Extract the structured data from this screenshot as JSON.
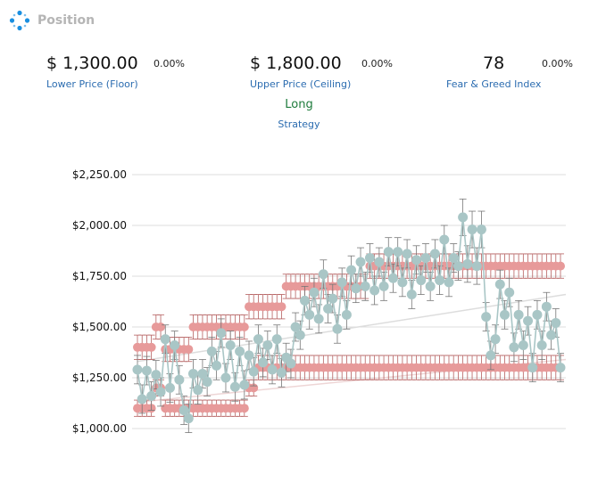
{
  "header": {
    "title": "Position",
    "icon": "dots-circle-icon",
    "icon_color": "#1a8fe0"
  },
  "stats": {
    "lower": {
      "value": "$ 1,300.00",
      "pct": "0.00%",
      "label": "Lower Price (Floor)"
    },
    "upper": {
      "value": "$  1,800.00",
      "pct": "0.00%",
      "label": "Upper Price (Ceiling)"
    },
    "fear": {
      "value": "78",
      "pct": "0.00%",
      "label": "Fear & Greed Index"
    }
  },
  "strategy": {
    "value": "Long",
    "label": "Strategy"
  },
  "colors": {
    "accent": "#2b6cb0",
    "long": "#1e7b3c",
    "price": "#a9c6c6",
    "bands": "#e79a9a",
    "band_error": "#b56060",
    "price_error": "#777777"
  },
  "chart_data": {
    "type": "scatter",
    "ylim": [
      1000,
      2250
    ],
    "yticks": [
      1000,
      1250,
      1500,
      1750,
      2000,
      2250
    ],
    "ytick_labels": [
      "$1,000.00",
      "$1,250.00",
      "$1,500.00",
      "$1,750.00",
      "$2,000.00",
      "$2,250.00"
    ],
    "grid": true,
    "series": [
      {
        "role": "price",
        "values": [
          1290,
          1145,
          1285,
          1160,
          1265,
          1180,
          1440,
          1200,
          1410,
          1240,
          1090,
          1050,
          1270,
          1190,
          1270,
          1230,
          1380,
          1310,
          1470,
          1250,
          1410,
          1205,
          1380,
          1215,
          1360,
          1280,
          1440,
          1325,
          1410,
          1290,
          1440,
          1275,
          1350,
          1320,
          1500,
          1460,
          1630,
          1560,
          1670,
          1540,
          1760,
          1590,
          1640,
          1490,
          1720,
          1560,
          1780,
          1690,
          1820,
          1700,
          1840,
          1680,
          1820,
          1700,
          1870,
          1740,
          1870,
          1720,
          1860,
          1660,
          1830,
          1730,
          1840,
          1700,
          1860,
          1730,
          1930,
          1720,
          1840,
          1800,
          2040,
          1810,
          1980,
          1800,
          1980,
          1550,
          1360,
          1440,
          1710,
          1560,
          1670,
          1400,
          1560,
          1410,
          1530,
          1300,
          1560,
          1410,
          1600,
          1460,
          1520,
          1300
        ],
        "errors": [
          70,
          70,
          70,
          70,
          70,
          70,
          70,
          70,
          70,
          70,
          70,
          70,
          70,
          70,
          70,
          70,
          70,
          70,
          70,
          70,
          70,
          70,
          70,
          70,
          70,
          70,
          70,
          70,
          70,
          70,
          70,
          70,
          70,
          70,
          70,
          70,
          70,
          70,
          70,
          70,
          70,
          70,
          70,
          70,
          70,
          70,
          70,
          70,
          70,
          70,
          70,
          70,
          70,
          70,
          70,
          70,
          70,
          70,
          70,
          70,
          70,
          70,
          70,
          70,
          70,
          70,
          70,
          70,
          70,
          70,
          90,
          90,
          90,
          90,
          90,
          70,
          70,
          70,
          70,
          70,
          70,
          70,
          70,
          70,
          70,
          70,
          70,
          70,
          70,
          70,
          70,
          70
        ]
      },
      {
        "role": "upper-band",
        "values": [
          1400,
          1400,
          1400,
          1400,
          1500,
          1500,
          1390,
          1390,
          1390,
          1390,
          1390,
          1390,
          1500,
          1500,
          1500,
          1500,
          1500,
          1500,
          1500,
          1500,
          1500,
          1500,
          1500,
          1500,
          1600,
          1600,
          1600,
          1600,
          1600,
          1600,
          1600,
          1600,
          1700,
          1700,
          1700,
          1700,
          1700,
          1700,
          1700,
          1700,
          1700,
          1700,
          1700,
          1700,
          1700,
          1700,
          1700,
          1700,
          1700,
          1700,
          1800,
          1800,
          1800,
          1800,
          1800,
          1800,
          1800,
          1800,
          1800,
          1800,
          1800,
          1800,
          1800,
          1800,
          1800,
          1800,
          1800,
          1800,
          1800,
          1800,
          1800,
          1800,
          1800,
          1800,
          1800,
          1800,
          1800,
          1800,
          1800,
          1800,
          1800,
          1800,
          1800,
          1800,
          1800,
          1800,
          1800,
          1800,
          1800,
          1800,
          1800,
          1800
        ],
        "errors": [
          60,
          60,
          60,
          60,
          60,
          60,
          60,
          60,
          60,
          60,
          60,
          60,
          60,
          60,
          60,
          60,
          60,
          60,
          60,
          60,
          60,
          60,
          60,
          60,
          60,
          60,
          60,
          60,
          60,
          60,
          60,
          60,
          60,
          60,
          60,
          60,
          60,
          60,
          60,
          60,
          60,
          60,
          60,
          60,
          60,
          60,
          60,
          60,
          60,
          60,
          60,
          60,
          60,
          60,
          60,
          60,
          60,
          60,
          60,
          60,
          60,
          60,
          60,
          60,
          60,
          60,
          60,
          60,
          60,
          60,
          60,
          60,
          60,
          60,
          60,
          60,
          60,
          60,
          60,
          60,
          60,
          60,
          60,
          60,
          60,
          60,
          60,
          60,
          60,
          60,
          60,
          60
        ]
      },
      {
        "role": "lower-band",
        "values": [
          1100,
          1100,
          1100,
          1100,
          1200,
          1200,
          1100,
          1100,
          1100,
          1100,
          1100,
          1100,
          1100,
          1100,
          1100,
          1100,
          1100,
          1100,
          1100,
          1100,
          1100,
          1100,
          1100,
          1100,
          1200,
          1200,
          1300,
          1300,
          1300,
          1300,
          1300,
          1300,
          1300,
          1300,
          1300,
          1300,
          1300,
          1300,
          1300,
          1300,
          1300,
          1300,
          1300,
          1300,
          1300,
          1300,
          1300,
          1300,
          1300,
          1300,
          1300,
          1300,
          1300,
          1300,
          1300,
          1300,
          1300,
          1300,
          1300,
          1300,
          1300,
          1300,
          1300,
          1300,
          1300,
          1300,
          1300,
          1300,
          1300,
          1300,
          1300,
          1300,
          1300,
          1300,
          1300,
          1300,
          1300,
          1300,
          1300,
          1300,
          1300,
          1300,
          1300,
          1300,
          1300,
          1300,
          1300,
          1300,
          1300,
          1300,
          1300,
          1300
        ],
        "errors": [
          40,
          40,
          40,
          40,
          40,
          40,
          40,
          40,
          40,
          40,
          40,
          40,
          40,
          40,
          40,
          40,
          40,
          40,
          40,
          40,
          40,
          40,
          40,
          40,
          40,
          40,
          60,
          60,
          60,
          60,
          60,
          60,
          60,
          60,
          60,
          60,
          60,
          60,
          60,
          60,
          60,
          60,
          60,
          60,
          60,
          60,
          60,
          60,
          60,
          60,
          60,
          60,
          60,
          60,
          60,
          60,
          60,
          60,
          60,
          60,
          60,
          60,
          60,
          60,
          60,
          60,
          60,
          60,
          60,
          60,
          60,
          60,
          60,
          60,
          60,
          60,
          60,
          60,
          60,
          60,
          60,
          60,
          60,
          60,
          60,
          60,
          60,
          60,
          60,
          60,
          60,
          60
        ]
      }
    ],
    "trendlines": [
      {
        "color": "#dddddd",
        "from": 1330,
        "to": 1660
      },
      {
        "color": "#eed6d6",
        "from": 1130,
        "to": 1340
      }
    ]
  }
}
